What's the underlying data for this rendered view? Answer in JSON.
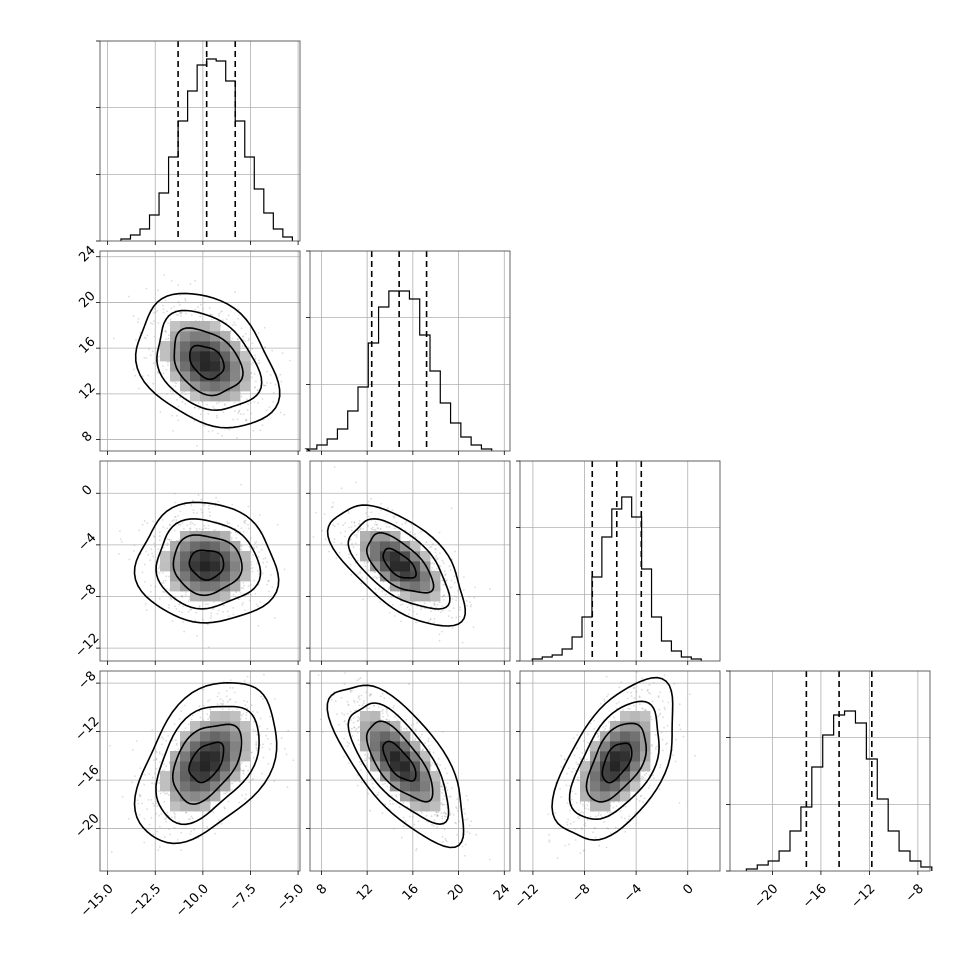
{
  "chart_data": {
    "type": "corner",
    "grid": true,
    "parameters": [
      {
        "index": 0,
        "range": [
          -15.4,
          -4.9
        ],
        "ticks": [
          -15,
          -12.5,
          -10,
          -7.5,
          -5
        ],
        "tick_labels": [
          "−15.0",
          "−12.5",
          "−10.0",
          "−7.5",
          "−5.0"
        ],
        "quantiles": [
          -11.3,
          -9.8,
          -8.3
        ],
        "hist_bin_width": 0.5,
        "hist_counts": [
          1,
          3,
          6,
          13,
          24,
          42,
          60,
          75,
          88,
          91,
          90,
          80,
          60,
          42,
          26,
          14,
          6,
          2
        ],
        "hist_yticks": [
          0,
          33.3,
          66.7,
          100
        ],
        "hist_ymax": 100
      },
      {
        "index": 1,
        "range": [
          7,
          24.5
        ],
        "ticks": [
          8,
          12,
          16,
          20,
          24
        ],
        "tick_labels": [
          "8",
          "12",
          "16",
          "20",
          "24"
        ],
        "quantiles": [
          12.4,
          14.8,
          17.2
        ],
        "hist_bin_width": 0.9,
        "hist_counts": [
          1,
          3,
          6,
          11,
          20,
          32,
          54,
          72,
          80,
          80,
          76,
          58,
          40,
          24,
          14,
          7,
          3,
          1
        ],
        "hist_yticks": [
          0,
          33.3,
          66.7,
          100
        ],
        "hist_ymax": 100
      },
      {
        "index": 2,
        "range": [
          -13,
          2.5
        ],
        "ticks": [
          -12,
          -8,
          -4,
          0
        ],
        "tick_labels": [
          "−12",
          "−8",
          "−4",
          "0"
        ],
        "quantiles": [
          -7.4,
          -5.5,
          -3.6
        ],
        "hist_bin_width": 0.77,
        "hist_counts": [
          1,
          2,
          3,
          6,
          12,
          22,
          42,
          62,
          76,
          82,
          72,
          46,
          22,
          10,
          5,
          2,
          1
        ],
        "hist_yticks": [
          0,
          33.3,
          66.7,
          100
        ],
        "hist_ymax": 100
      },
      {
        "index": 3,
        "range": [
          -23.5,
          -7
        ],
        "ticks": [
          -20,
          -16,
          -12,
          -8
        ],
        "tick_labels": [
          "−20",
          "−16",
          "−12",
          "−8"
        ],
        "quantiles": [
          -17.2,
          -14.5,
          -11.8
        ],
        "hist_bin_width": 0.9,
        "hist_counts": [
          1,
          3,
          5,
          10,
          20,
          32,
          52,
          68,
          78,
          80,
          74,
          56,
          36,
          20,
          10,
          5,
          2
        ],
        "hist_yticks": [
          0,
          33.3,
          66.7,
          100
        ],
        "hist_ymax": 100
      }
    ],
    "pairs": [
      {
        "x": 0,
        "y": 1,
        "center": [
          -9.8,
          14.8
        ],
        "rho": -0.3
      },
      {
        "x": 0,
        "y": 2,
        "center": [
          -9.8,
          -5.5
        ],
        "rho": -0.05
      },
      {
        "x": 1,
        "y": 2,
        "center": [
          14.8,
          -5.5
        ],
        "rho": -0.6
      },
      {
        "x": 0,
        "y": 3,
        "center": [
          -9.8,
          -14.5
        ],
        "rho": 0.42
      },
      {
        "x": 1,
        "y": 3,
        "center": [
          14.8,
          -14.5
        ],
        "rho": -0.68
      },
      {
        "x": 2,
        "y": 3,
        "center": [
          -5.5,
          -14.5
        ],
        "rho": 0.52
      }
    ]
  },
  "colors": {
    "background": "#ffffff",
    "frame": "#555555",
    "grid": "#b0b0b0",
    "ink": "#000000",
    "points": "#9a9a9a"
  }
}
